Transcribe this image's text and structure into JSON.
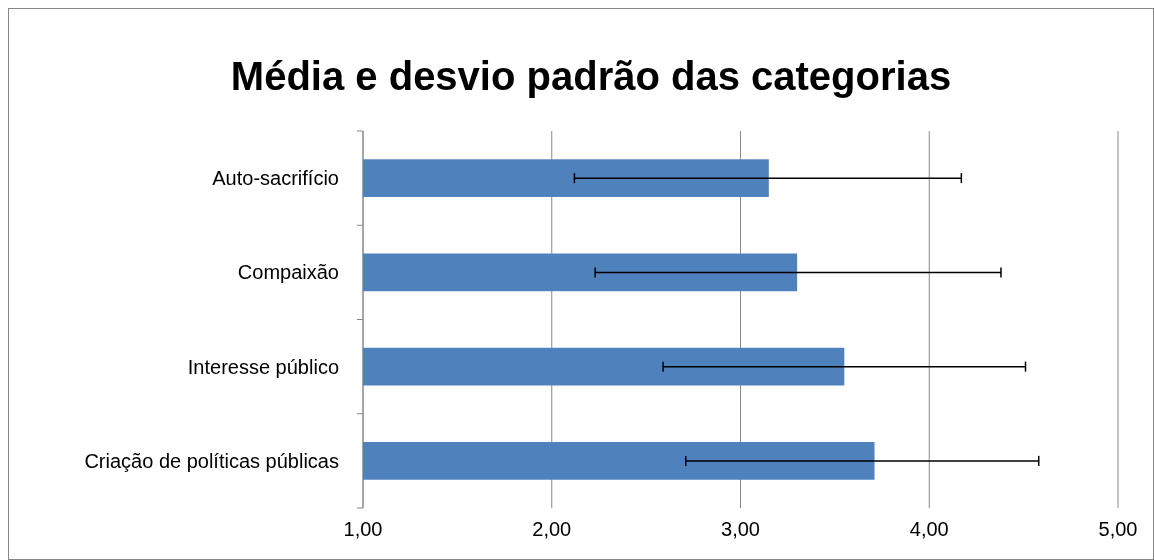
{
  "chart_data": {
    "type": "bar",
    "orientation": "horizontal",
    "title": "Média e desvio padrão das categorias",
    "categories": [
      "Auto-sacrifício",
      "Compaixão",
      "Interesse público",
      "Criação de políticas públicas"
    ],
    "values": [
      3.15,
      3.3,
      3.55,
      3.71
    ],
    "errors": [
      [
        2.12,
        4.17
      ],
      [
        2.23,
        4.38
      ],
      [
        2.59,
        4.51
      ],
      [
        2.71,
        4.58
      ]
    ],
    "color": "#4f81bd",
    "xlim": [
      1,
      5
    ],
    "xticks": [
      {
        "value": 1,
        "label": "1,00"
      },
      {
        "value": 2,
        "label": "2,00"
      },
      {
        "value": 3,
        "label": "3,00"
      },
      {
        "value": 4,
        "label": "4,00"
      },
      {
        "value": 5,
        "label": "5,00"
      }
    ],
    "grid": "x"
  }
}
